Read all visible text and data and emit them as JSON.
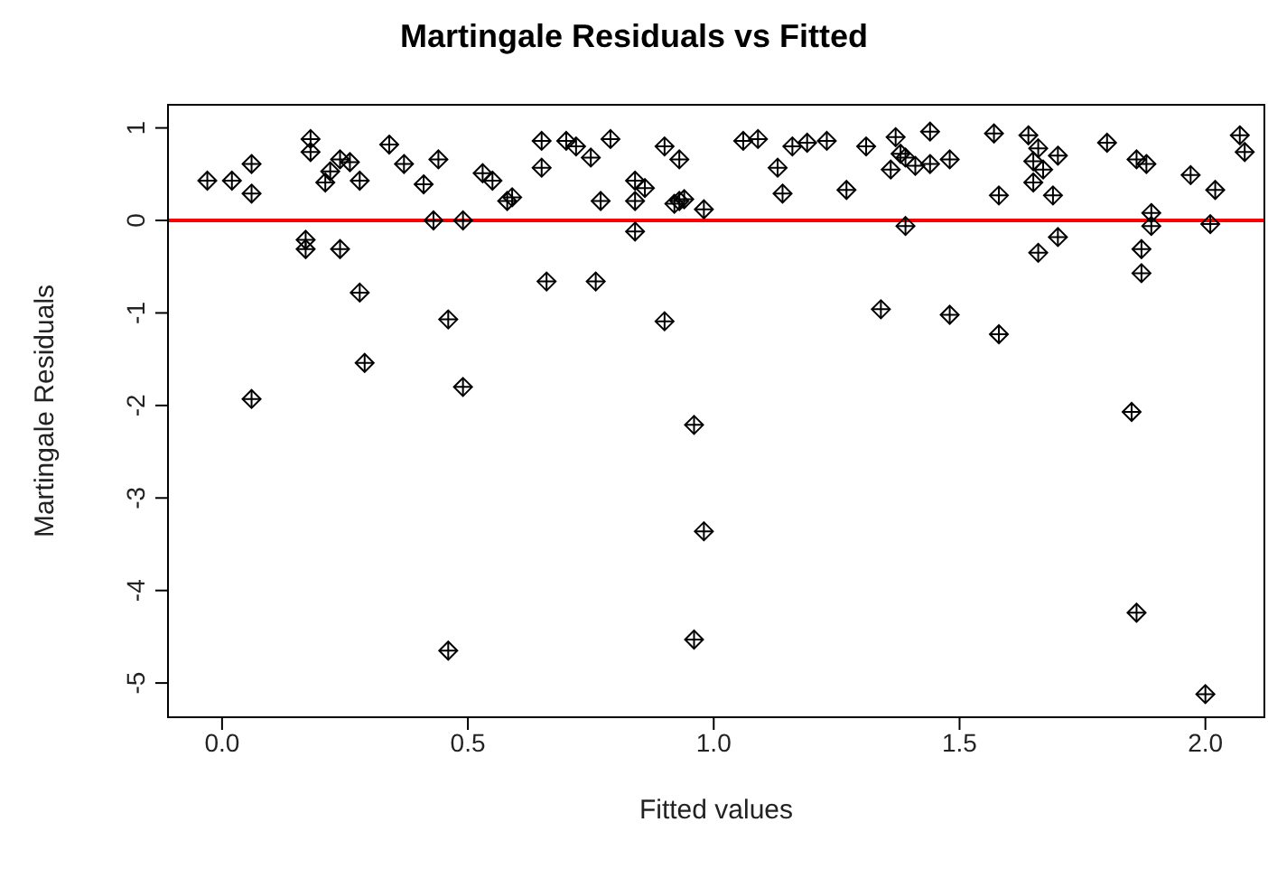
{
  "chart_data": {
    "type": "scatter",
    "title": "Martingale Residuals vs Fitted",
    "xlabel": "Fitted values",
    "ylabel": "Martingale Residuals",
    "marker": "diamond",
    "grid": false,
    "xlim": [
      -0.11,
      2.12
    ],
    "ylim": [
      -5.37,
      1.25
    ],
    "xticks": [
      {
        "value": 0,
        "label": "0.0"
      },
      0.5,
      {
        "value": 1,
        "label": "1.0"
      },
      1.5,
      {
        "value": 2,
        "label": "2.0"
      }
    ],
    "yticks": [
      -5,
      -4,
      -3,
      -2,
      -1,
      0,
      1
    ],
    "ref_lines": [
      {
        "axis": "y",
        "value": 0,
        "color": "#ff0000"
      }
    ],
    "series": [
      {
        "color": "#000000",
        "x": [
          -0.03,
          0.02,
          0.06,
          0.06,
          0.06,
          0.17,
          0.17,
          0.18,
          0.18,
          0.21,
          0.22,
          0.24,
          0.24,
          0.26,
          0.28,
          0.28,
          0.29,
          0.34,
          0.37,
          0.41,
          0.43,
          0.44,
          0.46,
          0.46,
          0.49,
          0.49,
          0.53,
          0.55,
          0.58,
          0.59,
          0.65,
          0.65,
          0.66,
          0.7,
          0.72,
          0.75,
          0.76,
          0.77,
          0.79,
          0.84,
          0.84,
          0.84,
          0.86,
          0.9,
          0.9,
          0.92,
          0.93,
          0.93,
          0.94,
          0.96,
          0.96,
          0.98,
          0.98,
          1.06,
          1.09,
          1.13,
          1.14,
          1.16,
          1.19,
          1.23,
          1.27,
          1.31,
          1.34,
          1.36,
          1.37,
          1.38,
          1.39,
          1.39,
          1.41,
          1.44,
          1.44,
          1.48,
          1.48,
          1.57,
          1.58,
          1.58,
          1.64,
          1.65,
          1.65,
          1.66,
          1.66,
          1.67,
          1.69,
          1.7,
          1.7,
          1.8,
          1.85,
          1.86,
          1.86,
          1.87,
          1.87,
          1.88,
          1.89,
          1.89,
          1.97,
          2.0,
          2.01,
          2.02,
          2.07,
          2.08
        ],
        "values": [
          0.43,
          0.43,
          0.29,
          0.61,
          -1.93,
          -0.21,
          -0.31,
          0.88,
          0.74,
          0.41,
          0.53,
          0.66,
          -0.31,
          0.63,
          -0.78,
          0.43,
          -1.54,
          0.82,
          0.61,
          0.39,
          0.0,
          0.66,
          -1.07,
          -4.65,
          0.0,
          -1.8,
          0.51,
          0.43,
          0.21,
          0.25,
          0.57,
          0.86,
          -0.66,
          0.86,
          0.8,
          0.68,
          -0.66,
          0.21,
          0.88,
          0.43,
          0.21,
          -0.12,
          0.35,
          -1.09,
          0.8,
          0.18,
          0.66,
          0.21,
          0.23,
          -2.21,
          -4.53,
          -3.36,
          0.12,
          0.86,
          0.88,
          0.57,
          0.29,
          0.8,
          0.84,
          0.86,
          0.33,
          0.8,
          -0.96,
          0.55,
          0.9,
          0.72,
          -0.06,
          0.68,
          0.59,
          0.61,
          0.96,
          0.66,
          -1.02,
          0.94,
          0.27,
          -1.23,
          0.92,
          0.64,
          0.41,
          0.78,
          -0.35,
          0.55,
          0.27,
          0.7,
          -0.18,
          0.84,
          -2.07,
          0.66,
          -4.24,
          -0.31,
          -0.57,
          0.61,
          0.08,
          -0.06,
          0.49,
          -5.12,
          -0.04,
          0.33,
          0.92,
          0.74
        ]
      }
    ]
  }
}
